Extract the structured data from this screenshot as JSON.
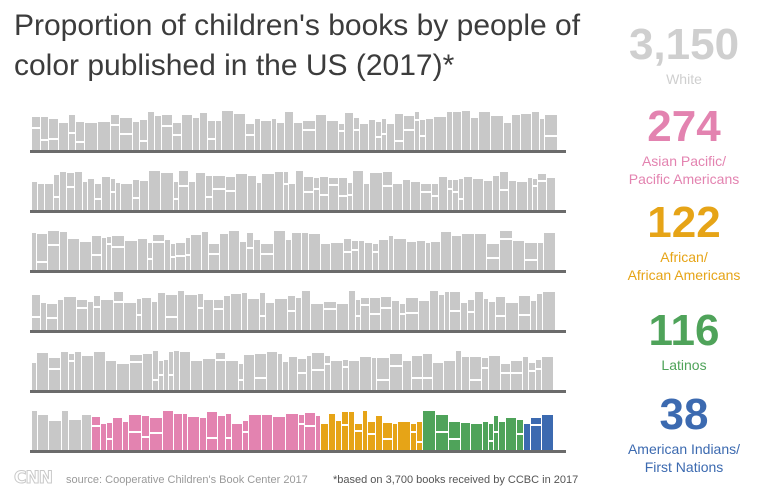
{
  "title": "Proportion of children's books by people of color published in the US (2017)*",
  "source": "source: Cooperative Children's Book Center 2017",
  "footnote": "*based on 3,700 books received by CCBC in 2017",
  "logo": "CNN",
  "chart_data": {
    "type": "pictograph",
    "categories": [
      {
        "value": "3,150",
        "label": "White",
        "count": 3150,
        "color": "#c8c8c8"
      },
      {
        "value": "274",
        "label": "Asian Pacific/\nPacific Americans",
        "count": 274,
        "color": "#e383b0"
      },
      {
        "value": "122",
        "label": "African/\nAfrican Americans",
        "count": 122,
        "color": "#e6a417"
      },
      {
        "value": "116",
        "label": "Latinos",
        "count": 116,
        "color": "#4fa35a"
      },
      {
        "value": "38",
        "label": "American Indians/\nFirst Nations",
        "count": 38,
        "color": "#3c6ab0"
      }
    ],
    "total_books": 3700,
    "shelves": 6
  }
}
